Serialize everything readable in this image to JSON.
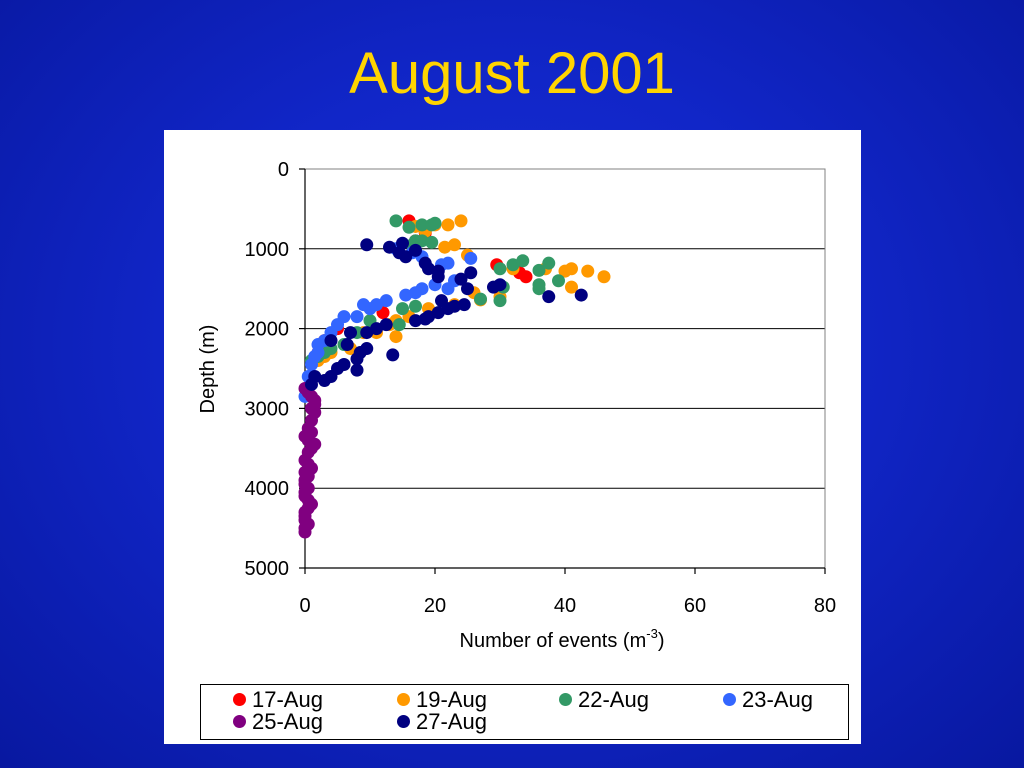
{
  "slide": {
    "title": "August 2001"
  },
  "chart_data": {
    "type": "scatter",
    "title": "",
    "xlabel": "Number of events (m",
    "xlabel_sup": "-3",
    "xlabel_suffix": ")",
    "ylabel": "Depth (m)",
    "xlim": [
      0,
      80
    ],
    "ylim": [
      0,
      5000
    ],
    "y_inverted": true,
    "grid": "horizontal",
    "x_ticks": [
      "0",
      "20",
      "40",
      "60",
      "80"
    ],
    "y_ticks": [
      "0",
      "1000",
      "2000",
      "3000",
      "4000",
      "5000"
    ],
    "legend_position": "bottom",
    "series": [
      {
        "name": "17-Aug",
        "color": "#ff0000",
        "points": [
          [
            16,
            650
          ],
          [
            18.5,
            800
          ],
          [
            17,
            900
          ],
          [
            29.5,
            1200
          ],
          [
            33,
            1300
          ],
          [
            34,
            1350
          ],
          [
            12,
            1800
          ],
          [
            5,
            2000
          ],
          [
            3,
            2150
          ],
          [
            2,
            2300
          ]
        ]
      },
      {
        "name": "19-Aug",
        "color": "#ff9900",
        "points": [
          [
            20,
            700
          ],
          [
            22,
            700
          ],
          [
            24,
            650
          ],
          [
            17,
            720
          ],
          [
            18.5,
            780
          ],
          [
            21.5,
            980
          ],
          [
            23,
            950
          ],
          [
            25,
            1080
          ],
          [
            32,
            1250
          ],
          [
            37,
            1250
          ],
          [
            40,
            1280
          ],
          [
            41,
            1250
          ],
          [
            43.5,
            1280
          ],
          [
            46,
            1350
          ],
          [
            41,
            1480
          ],
          [
            26,
            1550
          ],
          [
            30,
            1600
          ],
          [
            27,
            1640
          ],
          [
            23,
            1700
          ],
          [
            19,
            1750
          ],
          [
            16,
            1850
          ],
          [
            14,
            1900
          ],
          [
            13,
            1950
          ],
          [
            11,
            2050
          ],
          [
            14,
            2100
          ],
          [
            9,
            2050
          ],
          [
            7,
            2250
          ],
          [
            4,
            2300
          ],
          [
            3,
            2350
          ],
          [
            2,
            2400
          ]
        ]
      },
      {
        "name": "22-Aug",
        "color": "#339966",
        "points": [
          [
            14,
            650
          ],
          [
            16,
            730
          ],
          [
            17,
            900
          ],
          [
            18,
            700
          ],
          [
            19.5,
            700
          ],
          [
            20,
            680
          ],
          [
            16.5,
            950
          ],
          [
            18,
            900
          ],
          [
            19.5,
            920
          ],
          [
            30,
            1250
          ],
          [
            32,
            1200
          ],
          [
            33.5,
            1150
          ],
          [
            36,
            1270
          ],
          [
            37.5,
            1180
          ],
          [
            39,
            1400
          ],
          [
            36,
            1450
          ],
          [
            36,
            1500
          ],
          [
            30.5,
            1480
          ],
          [
            30,
            1650
          ],
          [
            27,
            1630
          ],
          [
            17,
            1720
          ],
          [
            15,
            1750
          ],
          [
            14.5,
            1950
          ],
          [
            10,
            1900
          ],
          [
            8,
            2050
          ],
          [
            6,
            2200
          ],
          [
            4,
            2250
          ],
          [
            3,
            2300
          ],
          [
            2,
            2350
          ],
          [
            1,
            2400
          ]
        ]
      },
      {
        "name": "23-Aug",
        "color": "#3366ff",
        "points": [
          [
            14,
            1000
          ],
          [
            16.5,
            1050
          ],
          [
            18,
            1100
          ],
          [
            21,
            1200
          ],
          [
            22,
            1180
          ],
          [
            25.5,
            1120
          ],
          [
            23,
            1400
          ],
          [
            22,
            1500
          ],
          [
            20,
            1450
          ],
          [
            18,
            1500
          ],
          [
            17,
            1550
          ],
          [
            15.5,
            1580
          ],
          [
            12.5,
            1650
          ],
          [
            11,
            1700
          ],
          [
            10,
            1750
          ],
          [
            9,
            1700
          ],
          [
            8,
            1850
          ],
          [
            6,
            1850
          ],
          [
            5,
            1950
          ],
          [
            4,
            2050
          ],
          [
            3,
            2150
          ],
          [
            2,
            2200
          ],
          [
            2,
            2300
          ],
          [
            1.5,
            2350
          ],
          [
            1,
            2450
          ],
          [
            0.5,
            2600
          ],
          [
            0,
            2850
          ]
        ]
      },
      {
        "name": "25-Aug",
        "color": "#800080",
        "points": [
          [
            0,
            2750
          ],
          [
            0.5,
            2800
          ],
          [
            1,
            2850
          ],
          [
            1.5,
            2900
          ],
          [
            1.5,
            2950
          ],
          [
            1,
            3000
          ],
          [
            1.5,
            3050
          ],
          [
            1,
            3150
          ],
          [
            0.5,
            3250
          ],
          [
            1,
            3300
          ],
          [
            0,
            3350
          ],
          [
            0.5,
            3400
          ],
          [
            1.5,
            3450
          ],
          [
            1,
            3500
          ],
          [
            0.5,
            3550
          ],
          [
            0,
            3650
          ],
          [
            0.5,
            3700
          ],
          [
            1,
            3750
          ],
          [
            0,
            3800
          ],
          [
            0.5,
            3850
          ],
          [
            0,
            3900
          ],
          [
            0,
            3950
          ],
          [
            0.5,
            4000
          ],
          [
            0,
            4050
          ],
          [
            0,
            4100
          ],
          [
            0.5,
            4150
          ],
          [
            1,
            4200
          ],
          [
            0.5,
            4250
          ],
          [
            0,
            4300
          ],
          [
            0,
            4350
          ],
          [
            0,
            4400
          ],
          [
            0.5,
            4450
          ],
          [
            0,
            4500
          ],
          [
            0,
            4550
          ]
        ]
      },
      {
        "name": "27-Aug",
        "color": "#000080",
        "points": [
          [
            9.5,
            950
          ],
          [
            13,
            980
          ],
          [
            15,
            930
          ],
          [
            14.5,
            1050
          ],
          [
            15.5,
            1100
          ],
          [
            17,
            1020
          ],
          [
            18.5,
            1180
          ],
          [
            19,
            1250
          ],
          [
            20.5,
            1280
          ],
          [
            20.5,
            1350
          ],
          [
            24,
            1380
          ],
          [
            25.5,
            1300
          ],
          [
            29,
            1480
          ],
          [
            30,
            1450
          ],
          [
            25,
            1500
          ],
          [
            21,
            1650
          ],
          [
            23,
            1720
          ],
          [
            24.5,
            1700
          ],
          [
            22,
            1750
          ],
          [
            20.5,
            1800
          ],
          [
            19,
            1850
          ],
          [
            18.5,
            1880
          ],
          [
            17,
            1900
          ],
          [
            37.5,
            1600
          ],
          [
            42.5,
            1580
          ],
          [
            12.5,
            1950
          ],
          [
            11,
            2000
          ],
          [
            9.5,
            2050
          ],
          [
            7,
            2050
          ],
          [
            4,
            2150
          ],
          [
            6.5,
            2200
          ],
          [
            8.5,
            2300
          ],
          [
            9.5,
            2250
          ],
          [
            13.5,
            2330
          ],
          [
            8,
            2380
          ],
          [
            6,
            2450
          ],
          [
            5,
            2500
          ],
          [
            8,
            2520
          ],
          [
            4,
            2600
          ],
          [
            3,
            2650
          ],
          [
            1.5,
            2600
          ],
          [
            1,
            2700
          ]
        ]
      }
    ]
  }
}
